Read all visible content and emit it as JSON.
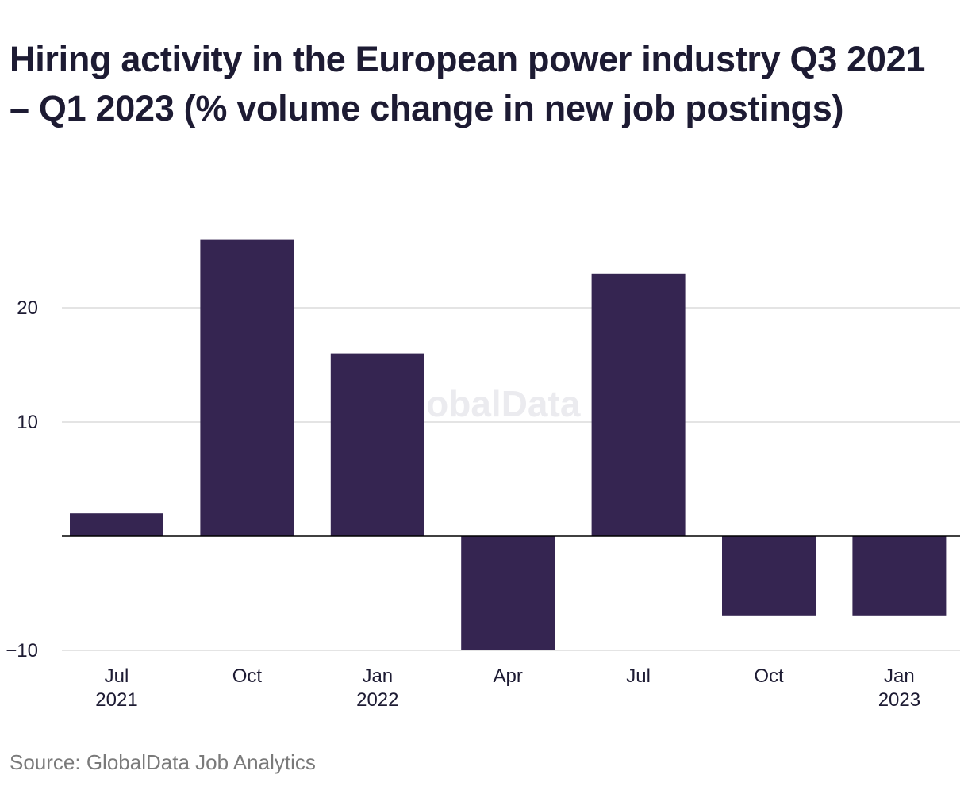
{
  "title": "Hiring activity in the European power industry Q3 2021 – Q1 2023 (% volume change in new job postings)",
  "source": "Source: GlobalData Job Analytics",
  "watermark": "GlobalData",
  "colors": {
    "bar": "#352551",
    "grid": "#d3d3d3",
    "zero_line": "#000000",
    "text": "#1d1b33",
    "source": "#7a7a7a"
  },
  "chart_data": {
    "type": "bar",
    "categories": [
      "Jul 2021",
      "Oct 2021",
      "Jan 2022",
      "Apr 2022",
      "Jul 2022",
      "Oct 2022",
      "Jan 2023"
    ],
    "category_labels": [
      [
        "Jul",
        "2021"
      ],
      [
        "Oct"
      ],
      [
        "Jan",
        "2022"
      ],
      [
        "Apr"
      ],
      [
        "Jul"
      ],
      [
        "Oct"
      ],
      [
        "Jan",
        "2023"
      ]
    ],
    "values": [
      2,
      26,
      16,
      -10,
      23,
      -7,
      -7
    ],
    "title": "Hiring activity in the European power industry Q3 2021 – Q1 2023 (% volume change in new job postings)",
    "xlabel": "",
    "ylabel": "",
    "ylim": [
      -10,
      28
    ],
    "yticks": [
      -10,
      10,
      20
    ],
    "ytick_labels": [
      "−10",
      "10",
      "20"
    ],
    "grid": true,
    "legend": "none"
  }
}
